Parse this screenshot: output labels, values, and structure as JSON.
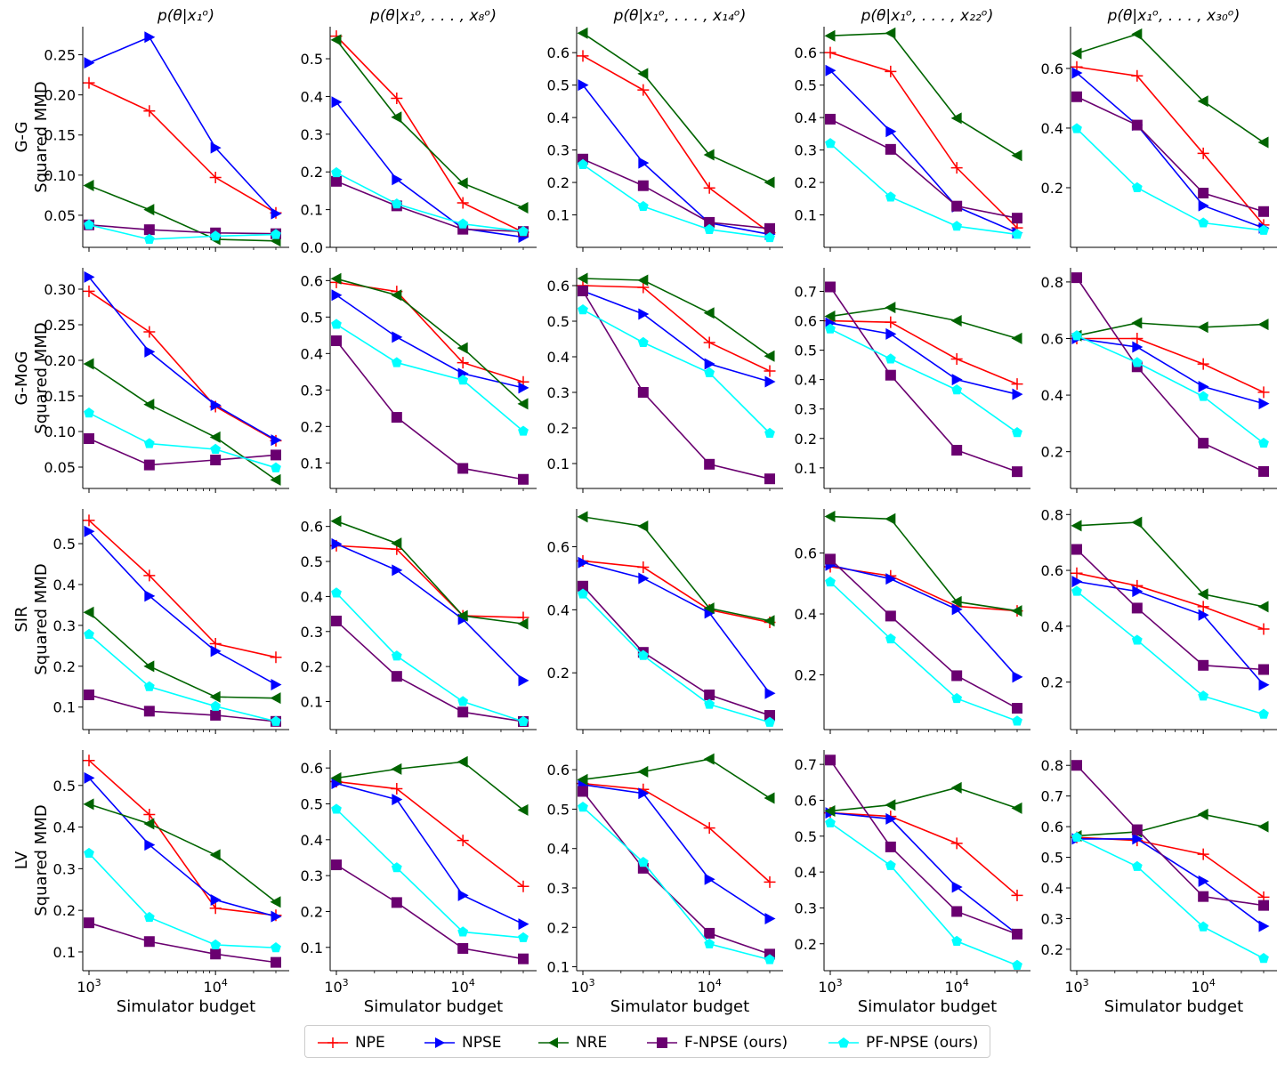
{
  "chart_data": {
    "type": "line",
    "x": [
      1000,
      3000,
      10000,
      30000
    ],
    "x_scale": "log",
    "xlabel": "Simulator budget",
    "x_tick_labels": [
      "10^3",
      "10^4"
    ],
    "ylabel_suffix": "Squared MMD",
    "columns": [
      {
        "title": "p(θ|x₁ᵒ)"
      },
      {
        "title": "p(θ|x₁ᵒ, . . . , x₈ᵒ)"
      },
      {
        "title": "p(θ|x₁ᵒ, . . . , x₁₄ᵒ)"
      },
      {
        "title": "p(θ|x₁ᵒ, . . . , x₂₂ᵒ)"
      },
      {
        "title": "p(θ|x₁ᵒ, . . . , x₃₀ᵒ)"
      }
    ],
    "rows": [
      {
        "label": "G-G"
      },
      {
        "label": "G-MoG"
      },
      {
        "label": "SIR"
      },
      {
        "label": "LV"
      }
    ],
    "methods": [
      {
        "name": "NPE",
        "color": "#ff0000",
        "marker": "plus"
      },
      {
        "name": "NPSE",
        "color": "#0000ff",
        "marker": "triangle-right"
      },
      {
        "name": "NRE",
        "color": "#006400",
        "marker": "triangle-left"
      },
      {
        "name": "F-NPSE (ours)",
        "color": "#6a0070",
        "marker": "square"
      },
      {
        "name": "PF-NPSE (ours)",
        "color": "#00ffff",
        "marker": "pentagon"
      }
    ],
    "legend_position": "bottom-center",
    "panels": [
      {
        "row": 0,
        "col": 0,
        "ylim": [
          0.01,
          0.285
        ],
        "yticks": [
          0.05,
          0.1,
          0.15,
          0.2,
          0.25
        ],
        "ytick_labels": [
          "0.05",
          "0.10",
          "0.15",
          "0.20",
          "0.25"
        ],
        "series": [
          [
            0.215,
            0.18,
            0.097,
            0.053
          ],
          [
            0.24,
            0.272,
            0.134,
            0.052
          ],
          [
            0.087,
            0.057,
            0.02,
            0.018
          ],
          [
            0.038,
            0.032,
            0.028,
            0.027
          ],
          [
            0.038,
            0.02,
            0.024,
            0.026
          ]
        ]
      },
      {
        "row": 0,
        "col": 1,
        "ylim": [
          0.0,
          0.585
        ],
        "yticks": [
          0.0,
          0.1,
          0.2,
          0.3,
          0.4,
          0.5
        ],
        "ytick_labels": [
          "0.0",
          "0.1",
          "0.2",
          "0.3",
          "0.4",
          "0.5"
        ],
        "series": [
          [
            0.56,
            0.395,
            0.118,
            0.04
          ],
          [
            0.385,
            0.18,
            0.05,
            0.027
          ],
          [
            0.55,
            0.345,
            0.17,
            0.105
          ],
          [
            0.175,
            0.11,
            0.048,
            0.042
          ],
          [
            0.198,
            0.115,
            0.062,
            0.042
          ]
        ]
      },
      {
        "row": 0,
        "col": 2,
        "ylim": [
          0.0,
          0.68
        ],
        "yticks": [
          0.1,
          0.2,
          0.3,
          0.4,
          0.5,
          0.6
        ],
        "ytick_labels": [
          "0.1",
          "0.2",
          "0.3",
          "0.4",
          "0.5",
          "0.6"
        ],
        "series": [
          [
            0.59,
            0.485,
            0.183,
            0.045
          ],
          [
            0.5,
            0.26,
            0.075,
            0.04
          ],
          [
            0.66,
            0.535,
            0.285,
            0.2
          ],
          [
            0.272,
            0.19,
            0.077,
            0.058
          ],
          [
            0.255,
            0.126,
            0.055,
            0.03
          ]
        ]
      },
      {
        "row": 0,
        "col": 3,
        "ylim": [
          0.0,
          0.68
        ],
        "yticks": [
          0.1,
          0.2,
          0.3,
          0.4,
          0.5,
          0.6
        ],
        "ytick_labels": [
          "0.1",
          "0.2",
          "0.3",
          "0.4",
          "0.5",
          "0.6"
        ],
        "series": [
          [
            0.6,
            0.542,
            0.245,
            0.06
          ],
          [
            0.545,
            0.357,
            0.125,
            0.045
          ],
          [
            0.652,
            0.66,
            0.398,
            0.283
          ],
          [
            0.395,
            0.302,
            0.127,
            0.09
          ],
          [
            0.32,
            0.155,
            0.065,
            0.04
          ]
        ]
      },
      {
        "row": 0,
        "col": 4,
        "ylim": [
          0.0,
          0.74
        ],
        "yticks": [
          0.2,
          0.4,
          0.6
        ],
        "ytick_labels": [
          "0.2",
          "0.4",
          "0.6"
        ],
        "series": [
          [
            0.605,
            0.575,
            0.315,
            0.075
          ],
          [
            0.585,
            0.41,
            0.14,
            0.065
          ],
          [
            0.65,
            0.715,
            0.49,
            0.352
          ],
          [
            0.505,
            0.41,
            0.182,
            0.12
          ],
          [
            0.398,
            0.2,
            0.082,
            0.057
          ]
        ]
      },
      {
        "row": 1,
        "col": 0,
        "ylim": [
          0.02,
          0.33
        ],
        "yticks": [
          0.05,
          0.1,
          0.15,
          0.2,
          0.25,
          0.3
        ],
        "ytick_labels": [
          "0.05",
          "0.10",
          "0.15",
          "0.20",
          "0.25",
          "0.30"
        ],
        "series": [
          [
            0.297,
            0.24,
            0.135,
            0.087
          ],
          [
            0.317,
            0.212,
            0.137,
            0.088
          ],
          [
            0.195,
            0.138,
            0.092,
            0.032
          ],
          [
            0.09,
            0.053,
            0.06,
            0.067
          ],
          [
            0.126,
            0.083,
            0.075,
            0.049
          ]
        ]
      },
      {
        "row": 1,
        "col": 1,
        "ylim": [
          0.03,
          0.635
        ],
        "yticks": [
          0.1,
          0.2,
          0.3,
          0.4,
          0.5,
          0.6
        ],
        "ytick_labels": [
          "0.1",
          "0.2",
          "0.3",
          "0.4",
          "0.5",
          "0.6"
        ],
        "series": [
          [
            0.595,
            0.57,
            0.375,
            0.322
          ],
          [
            0.56,
            0.445,
            0.345,
            0.306
          ],
          [
            0.605,
            0.56,
            0.415,
            0.262
          ],
          [
            0.435,
            0.225,
            0.085,
            0.055
          ],
          [
            0.48,
            0.375,
            0.327,
            0.187
          ]
        ]
      },
      {
        "row": 1,
        "col": 2,
        "ylim": [
          0.03,
          0.65
        ],
        "yticks": [
          0.1,
          0.2,
          0.3,
          0.4,
          0.5,
          0.6
        ],
        "ytick_labels": [
          "0.1",
          "0.2",
          "0.3",
          "0.4",
          "0.5",
          "0.6"
        ],
        "series": [
          [
            0.6,
            0.595,
            0.44,
            0.36
          ],
          [
            0.585,
            0.52,
            0.38,
            0.33
          ],
          [
            0.62,
            0.615,
            0.523,
            0.402
          ],
          [
            0.585,
            0.3,
            0.098,
            0.057
          ],
          [
            0.532,
            0.44,
            0.355,
            0.185
          ]
        ]
      },
      {
        "row": 1,
        "col": 3,
        "ylim": [
          0.03,
          0.78
        ],
        "yticks": [
          0.1,
          0.2,
          0.3,
          0.4,
          0.5,
          0.6,
          0.7
        ],
        "ytick_labels": [
          "0.1",
          "0.2",
          "0.3",
          "0.4",
          "0.5",
          "0.6",
          "0.7"
        ],
        "series": [
          [
            0.6,
            0.595,
            0.47,
            0.385
          ],
          [
            0.592,
            0.555,
            0.4,
            0.35
          ],
          [
            0.615,
            0.645,
            0.6,
            0.54
          ],
          [
            0.715,
            0.415,
            0.16,
            0.087
          ],
          [
            0.572,
            0.47,
            0.365,
            0.22
          ]
        ]
      },
      {
        "row": 1,
        "col": 4,
        "ylim": [
          0.07,
          0.85
        ],
        "yticks": [
          0.2,
          0.4,
          0.6,
          0.8
        ],
        "ytick_labels": [
          "0.2",
          "0.4",
          "0.6",
          "0.8"
        ],
        "series": [
          [
            0.6,
            0.6,
            0.51,
            0.41
          ],
          [
            0.6,
            0.57,
            0.43,
            0.37
          ],
          [
            0.61,
            0.655,
            0.64,
            0.65
          ],
          [
            0.815,
            0.5,
            0.23,
            0.13
          ],
          [
            0.61,
            0.515,
            0.395,
            0.23
          ]
        ]
      },
      {
        "row": 2,
        "col": 0,
        "ylim": [
          0.045,
          0.585
        ],
        "yticks": [
          0.1,
          0.2,
          0.3,
          0.4,
          0.5
        ],
        "ytick_labels": [
          "0.1",
          "0.2",
          "0.3",
          "0.4",
          "0.5"
        ],
        "series": [
          [
            0.557,
            0.422,
            0.255,
            0.222
          ],
          [
            0.53,
            0.372,
            0.237,
            0.155
          ],
          [
            0.332,
            0.2,
            0.125,
            0.122
          ],
          [
            0.13,
            0.09,
            0.08,
            0.065
          ],
          [
            0.278,
            0.15,
            0.102,
            0.065
          ]
        ]
      },
      {
        "row": 2,
        "col": 1,
        "ylim": [
          0.02,
          0.65
        ],
        "yticks": [
          0.1,
          0.2,
          0.3,
          0.4,
          0.5,
          0.6
        ],
        "ytick_labels": [
          "0.1",
          "0.2",
          "0.3",
          "0.4",
          "0.5",
          "0.6"
        ],
        "series": [
          [
            0.545,
            0.535,
            0.345,
            0.34
          ],
          [
            0.55,
            0.475,
            0.335,
            0.16
          ],
          [
            0.615,
            0.552,
            0.345,
            0.322
          ],
          [
            0.33,
            0.172,
            0.07,
            0.043
          ],
          [
            0.41,
            0.23,
            0.1,
            0.043
          ]
        ]
      },
      {
        "row": 2,
        "col": 2,
        "ylim": [
          0.02,
          0.72
        ],
        "yticks": [
          0.2,
          0.4,
          0.6
        ],
        "ytick_labels": [
          "0.2",
          "0.4",
          "0.6"
        ],
        "series": [
          [
            0.555,
            0.535,
            0.4,
            0.36
          ],
          [
            0.55,
            0.5,
            0.39,
            0.135
          ],
          [
            0.695,
            0.665,
            0.405,
            0.365
          ],
          [
            0.475,
            0.265,
            0.13,
            0.065
          ],
          [
            0.45,
            0.255,
            0.1,
            0.043
          ]
        ]
      },
      {
        "row": 2,
        "col": 3,
        "ylim": [
          0.02,
          0.745
        ],
        "yticks": [
          0.2,
          0.4,
          0.6
        ],
        "ytick_labels": [
          "0.2",
          "0.4",
          "0.6"
        ],
        "series": [
          [
            0.555,
            0.525,
            0.425,
            0.41
          ],
          [
            0.56,
            0.515,
            0.415,
            0.193
          ],
          [
            0.72,
            0.712,
            0.44,
            0.41
          ],
          [
            0.58,
            0.393,
            0.197,
            0.09
          ],
          [
            0.505,
            0.318,
            0.122,
            0.048
          ]
        ]
      },
      {
        "row": 2,
        "col": 4,
        "ylim": [
          0.03,
          0.82
        ],
        "yticks": [
          0.2,
          0.4,
          0.6,
          0.8
        ],
        "ytick_labels": [
          "0.2",
          "0.4",
          "0.6",
          "0.8"
        ],
        "series": [
          [
            0.59,
            0.545,
            0.47,
            0.39
          ],
          [
            0.56,
            0.525,
            0.44,
            0.19
          ],
          [
            0.76,
            0.772,
            0.515,
            0.47
          ],
          [
            0.675,
            0.465,
            0.26,
            0.245
          ],
          [
            0.525,
            0.35,
            0.15,
            0.085
          ]
        ]
      },
      {
        "row": 3,
        "col": 0,
        "ylim": [
          0.055,
          0.585
        ],
        "yticks": [
          0.1,
          0.2,
          0.3,
          0.4,
          0.5
        ],
        "ytick_labels": [
          "0.1",
          "0.2",
          "0.3",
          "0.4",
          "0.5"
        ],
        "series": [
          [
            0.56,
            0.43,
            0.205,
            0.188
          ],
          [
            0.518,
            0.357,
            0.225,
            0.185
          ],
          [
            0.455,
            0.408,
            0.333,
            0.22
          ],
          [
            0.17,
            0.125,
            0.095,
            0.075
          ],
          [
            0.337,
            0.183,
            0.117,
            0.11
          ]
        ]
      },
      {
        "row": 3,
        "col": 1,
        "ylim": [
          0.035,
          0.65
        ],
        "yticks": [
          0.1,
          0.2,
          0.3,
          0.4,
          0.5,
          0.6
        ],
        "ytick_labels": [
          "0.1",
          "0.2",
          "0.3",
          "0.4",
          "0.5",
          "0.6"
        ],
        "series": [
          [
            0.562,
            0.542,
            0.398,
            0.27
          ],
          [
            0.557,
            0.512,
            0.245,
            0.165
          ],
          [
            0.572,
            0.597,
            0.617,
            0.483
          ],
          [
            0.33,
            0.225,
            0.097,
            0.068
          ],
          [
            0.485,
            0.322,
            0.143,
            0.127
          ]
        ]
      },
      {
        "row": 3,
        "col": 2,
        "ylim": [
          0.09,
          0.65
        ],
        "yticks": [
          0.1,
          0.2,
          0.3,
          0.4,
          0.5,
          0.6
        ],
        "ytick_labels": [
          "0.1",
          "0.2",
          "0.3",
          "0.4",
          "0.5",
          "0.6"
        ],
        "series": [
          [
            0.565,
            0.55,
            0.452,
            0.315
          ],
          [
            0.562,
            0.54,
            0.322,
            0.222
          ],
          [
            0.575,
            0.595,
            0.627,
            0.528
          ],
          [
            0.545,
            0.35,
            0.185,
            0.132
          ],
          [
            0.505,
            0.365,
            0.158,
            0.118
          ]
        ]
      },
      {
        "row": 3,
        "col": 3,
        "ylim": [
          0.125,
          0.74
        ],
        "yticks": [
          0.2,
          0.3,
          0.4,
          0.5,
          0.6,
          0.7
        ],
        "ytick_labels": [
          "0.2",
          "0.3",
          "0.4",
          "0.5",
          "0.6",
          "0.7"
        ],
        "series": [
          [
            0.565,
            0.555,
            0.48,
            0.335
          ],
          [
            0.565,
            0.548,
            0.358,
            0.227
          ],
          [
            0.57,
            0.587,
            0.635,
            0.578
          ],
          [
            0.712,
            0.47,
            0.29,
            0.227
          ],
          [
            0.537,
            0.418,
            0.207,
            0.14
          ]
        ]
      },
      {
        "row": 3,
        "col": 4,
        "ylim": [
          0.13,
          0.85
        ],
        "yticks": [
          0.2,
          0.3,
          0.4,
          0.5,
          0.6,
          0.7,
          0.8
        ],
        "ytick_labels": [
          "0.2",
          "0.3",
          "0.4",
          "0.5",
          "0.6",
          "0.7",
          "0.8"
        ],
        "series": [
          [
            0.565,
            0.555,
            0.51,
            0.37
          ],
          [
            0.56,
            0.56,
            0.422,
            0.275
          ],
          [
            0.57,
            0.583,
            0.64,
            0.6
          ],
          [
            0.8,
            0.59,
            0.372,
            0.343
          ],
          [
            0.565,
            0.47,
            0.273,
            0.17
          ]
        ]
      }
    ]
  }
}
